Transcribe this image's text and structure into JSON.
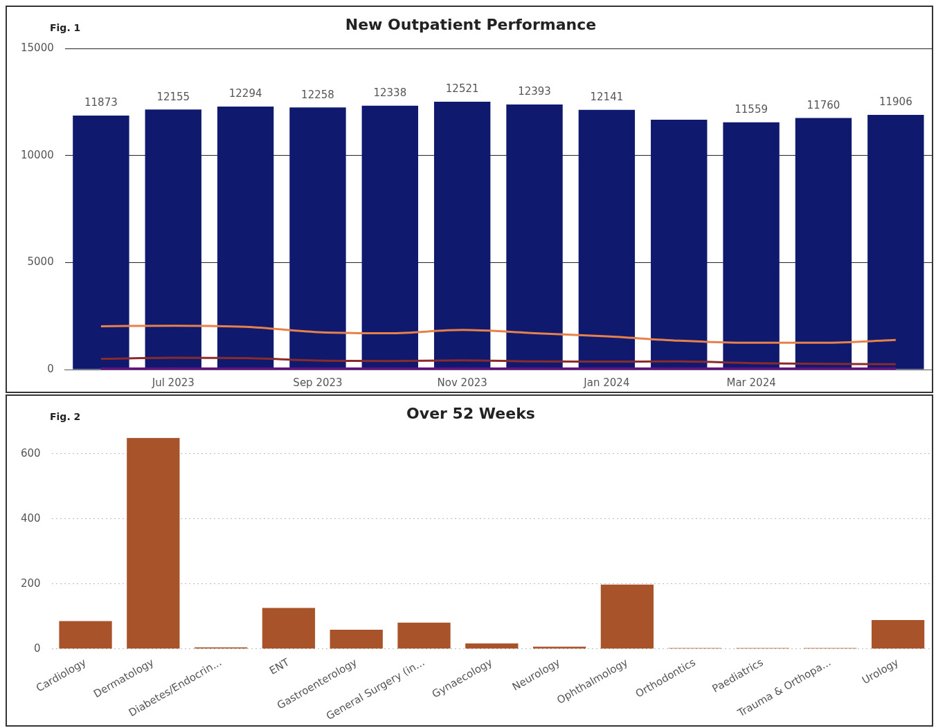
{
  "chart_data": [
    {
      "type": "bar",
      "title": "New Outpatient Performance",
      "annotations": [
        "Fig. 1"
      ],
      "categories": [
        null,
        "Jul 2023",
        null,
        "Sep 2023",
        null,
        "Nov 2023",
        null,
        "Jan 2024",
        null,
        "Mar 2024",
        null,
        null
      ],
      "series": [
        {
          "color": "#0f1a6e",
          "values": [
            11873,
            12155,
            12294,
            12258,
            12338,
            12521,
            12393,
            12141,
            11680,
            11559,
            11760,
            11906
          ],
          "value_labels": [
            "11873",
            "12155",
            "12294",
            "12258",
            "12338",
            "12521",
            "12393",
            "12141",
            null,
            "11559",
            "11760",
            "11906"
          ]
        },
        {
          "type": "line",
          "color": "#e8804a",
          "values": [
            2020,
            2050,
            2000,
            1750,
            1700,
            1850,
            1700,
            1550,
            1350,
            1250,
            1250,
            1380
          ]
        },
        {
          "type": "line",
          "color": "#8b2a2a",
          "values": [
            500,
            550,
            530,
            420,
            400,
            430,
            380,
            370,
            380,
            300,
            270,
            250
          ]
        },
        {
          "type": "line",
          "color": "#6a0d8a",
          "values": [
            50,
            50,
            50,
            50,
            50,
            50,
            50,
            50,
            50,
            50,
            50,
            50
          ]
        }
      ],
      "ylim": [
        0,
        15000
      ],
      "yticks": [
        0,
        5000,
        10000,
        15000
      ],
      "grid": "y",
      "marker": "none",
      "line_style": "solid"
    },
    {
      "type": "bar",
      "title": "Over 52 Weeks",
      "annotations": [
        "Fig. 2"
      ],
      "categories": [
        "Cardiology",
        "Dermatology",
        "Diabetes/Endocrin...",
        "ENT",
        "Gastroenterology",
        "General Surgery (in...",
        "Gynaecology",
        "Neurology",
        "Ophthalmology",
        "Orthodontics",
        "Paediatrics",
        "Trauma & Orthopa...",
        "Urology"
      ],
      "series": [
        {
          "color": "#a9532a",
          "values": [
            86,
            649,
            5,
            126,
            59,
            81,
            17,
            7,
            198,
            3,
            3,
            3,
            89
          ]
        }
      ],
      "ylim": [
        0,
        650
      ],
      "yticks": [
        0,
        200,
        400,
        600
      ],
      "grid": "y"
    }
  ]
}
